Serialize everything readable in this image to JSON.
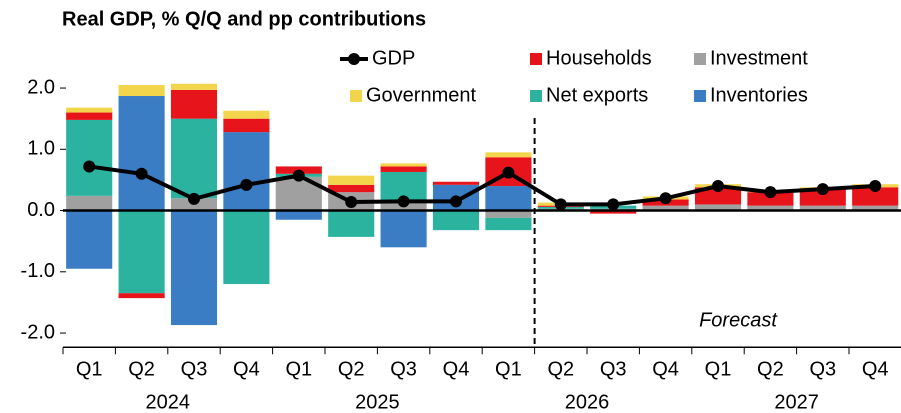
{
  "chart_data": {
    "type": "stacked_bar_line",
    "title": "Real GDP, % Q/Q and pp contributions",
    "categories": [
      "Q1",
      "Q2",
      "Q3",
      "Q4",
      "Q1",
      "Q2",
      "Q3",
      "Q4",
      "Q1",
      "Q2",
      "Q3",
      "Q4",
      "Q1",
      "Q2",
      "Q3",
      "Q4"
    ],
    "groups": [
      {
        "label": "2024",
        "count": 4
      },
      {
        "label": "2025",
        "count": 4
      },
      {
        "label": "2026",
        "count": 4
      },
      {
        "label": "2027",
        "count": 4
      }
    ],
    "series": [
      {
        "name": "Households",
        "color": "#e8141c",
        "values": [
          0.12,
          -0.08,
          0.47,
          0.22,
          0.12,
          0.12,
          0.09,
          0.05,
          0.47,
          0.02,
          -0.05,
          0.1,
          0.28,
          0.22,
          0.27,
          0.3
        ]
      },
      {
        "name": "Investment",
        "color": "#a0a0a0",
        "values": [
          0.24,
          0,
          0.2,
          0,
          0.55,
          0.3,
          0.12,
          0,
          -0.12,
          0.03,
          0.03,
          0.08,
          0.1,
          0.08,
          0.08,
          0.08
        ]
      },
      {
        "name": "Government",
        "color": "#f2d54b",
        "values": [
          0.08,
          0.18,
          0.1,
          0.13,
          0,
          0.15,
          0.05,
          0,
          0.08,
          0.05,
          0,
          0.05,
          0.05,
          0.03,
          0.03,
          0.05
        ]
      },
      {
        "name": "Net exports",
        "color": "#2bb3a0",
        "values": [
          1.24,
          -1.35,
          1.3,
          -1.2,
          0.05,
          -0.43,
          0.51,
          -0.32,
          -0.2,
          0.03,
          0.05,
          0,
          0,
          0,
          0,
          0
        ]
      },
      {
        "name": "Inventories",
        "color": "#3a7dc4",
        "values": [
          -0.95,
          1.87,
          -1.87,
          1.28,
          -0.15,
          0,
          -0.6,
          0.42,
          0.4,
          0,
          0,
          0,
          0,
          0,
          0,
          0
        ]
      },
      {
        "name": "GDP",
        "color": "#000000",
        "type": "line",
        "values": [
          0.72,
          0.6,
          0.19,
          0.42,
          0.57,
          0.14,
          0.15,
          0.15,
          0.62,
          0.1,
          0.1,
          0.2,
          0.4,
          0.3,
          0.35,
          0.4
        ]
      }
    ],
    "ylim": [
      -2.2,
      2.6
    ],
    "yticks": [
      {
        "value": -2,
        "label": "-2.0"
      },
      {
        "value": -1,
        "label": "-1.0"
      },
      {
        "value": 0,
        "label": "0.0"
      },
      {
        "value": 1,
        "label": "1.0"
      },
      {
        "value": 2,
        "label": "2.0"
      }
    ],
    "annotation": {
      "text": "Forecast",
      "start_index": 9
    }
  }
}
